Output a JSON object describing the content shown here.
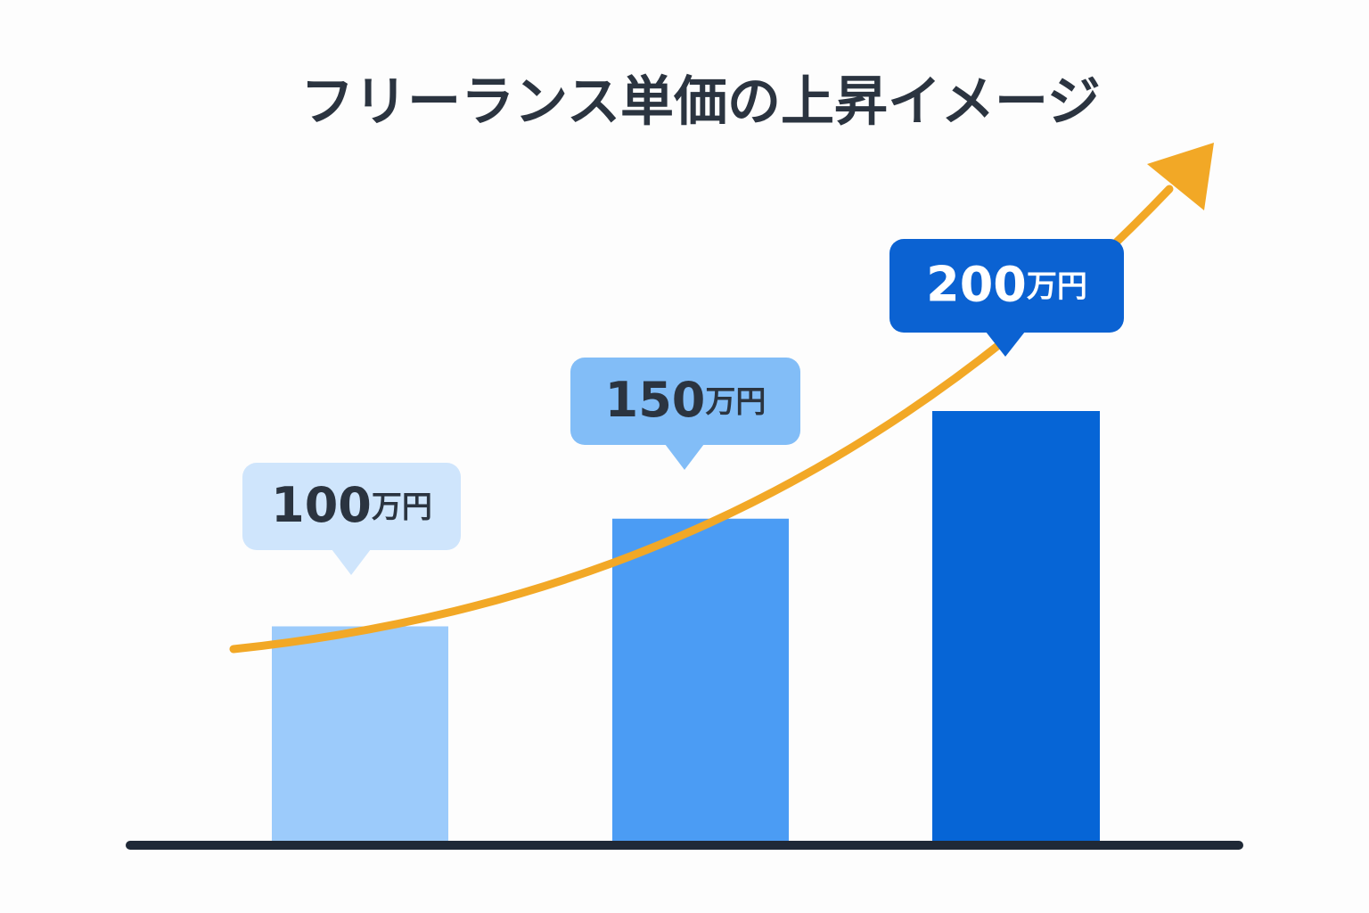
{
  "chart_data": {
    "type": "bar",
    "title": "フリーランス単価の上昇イメージ",
    "categories": [
      null,
      null,
      null
    ],
    "values": [
      100,
      150,
      200
    ],
    "value_labels": [
      "100万円",
      "150万円",
      "200万円"
    ],
    "colors": [
      "#9ccbfb",
      "#4b9cf4",
      "#0665d6"
    ]
  }
}
